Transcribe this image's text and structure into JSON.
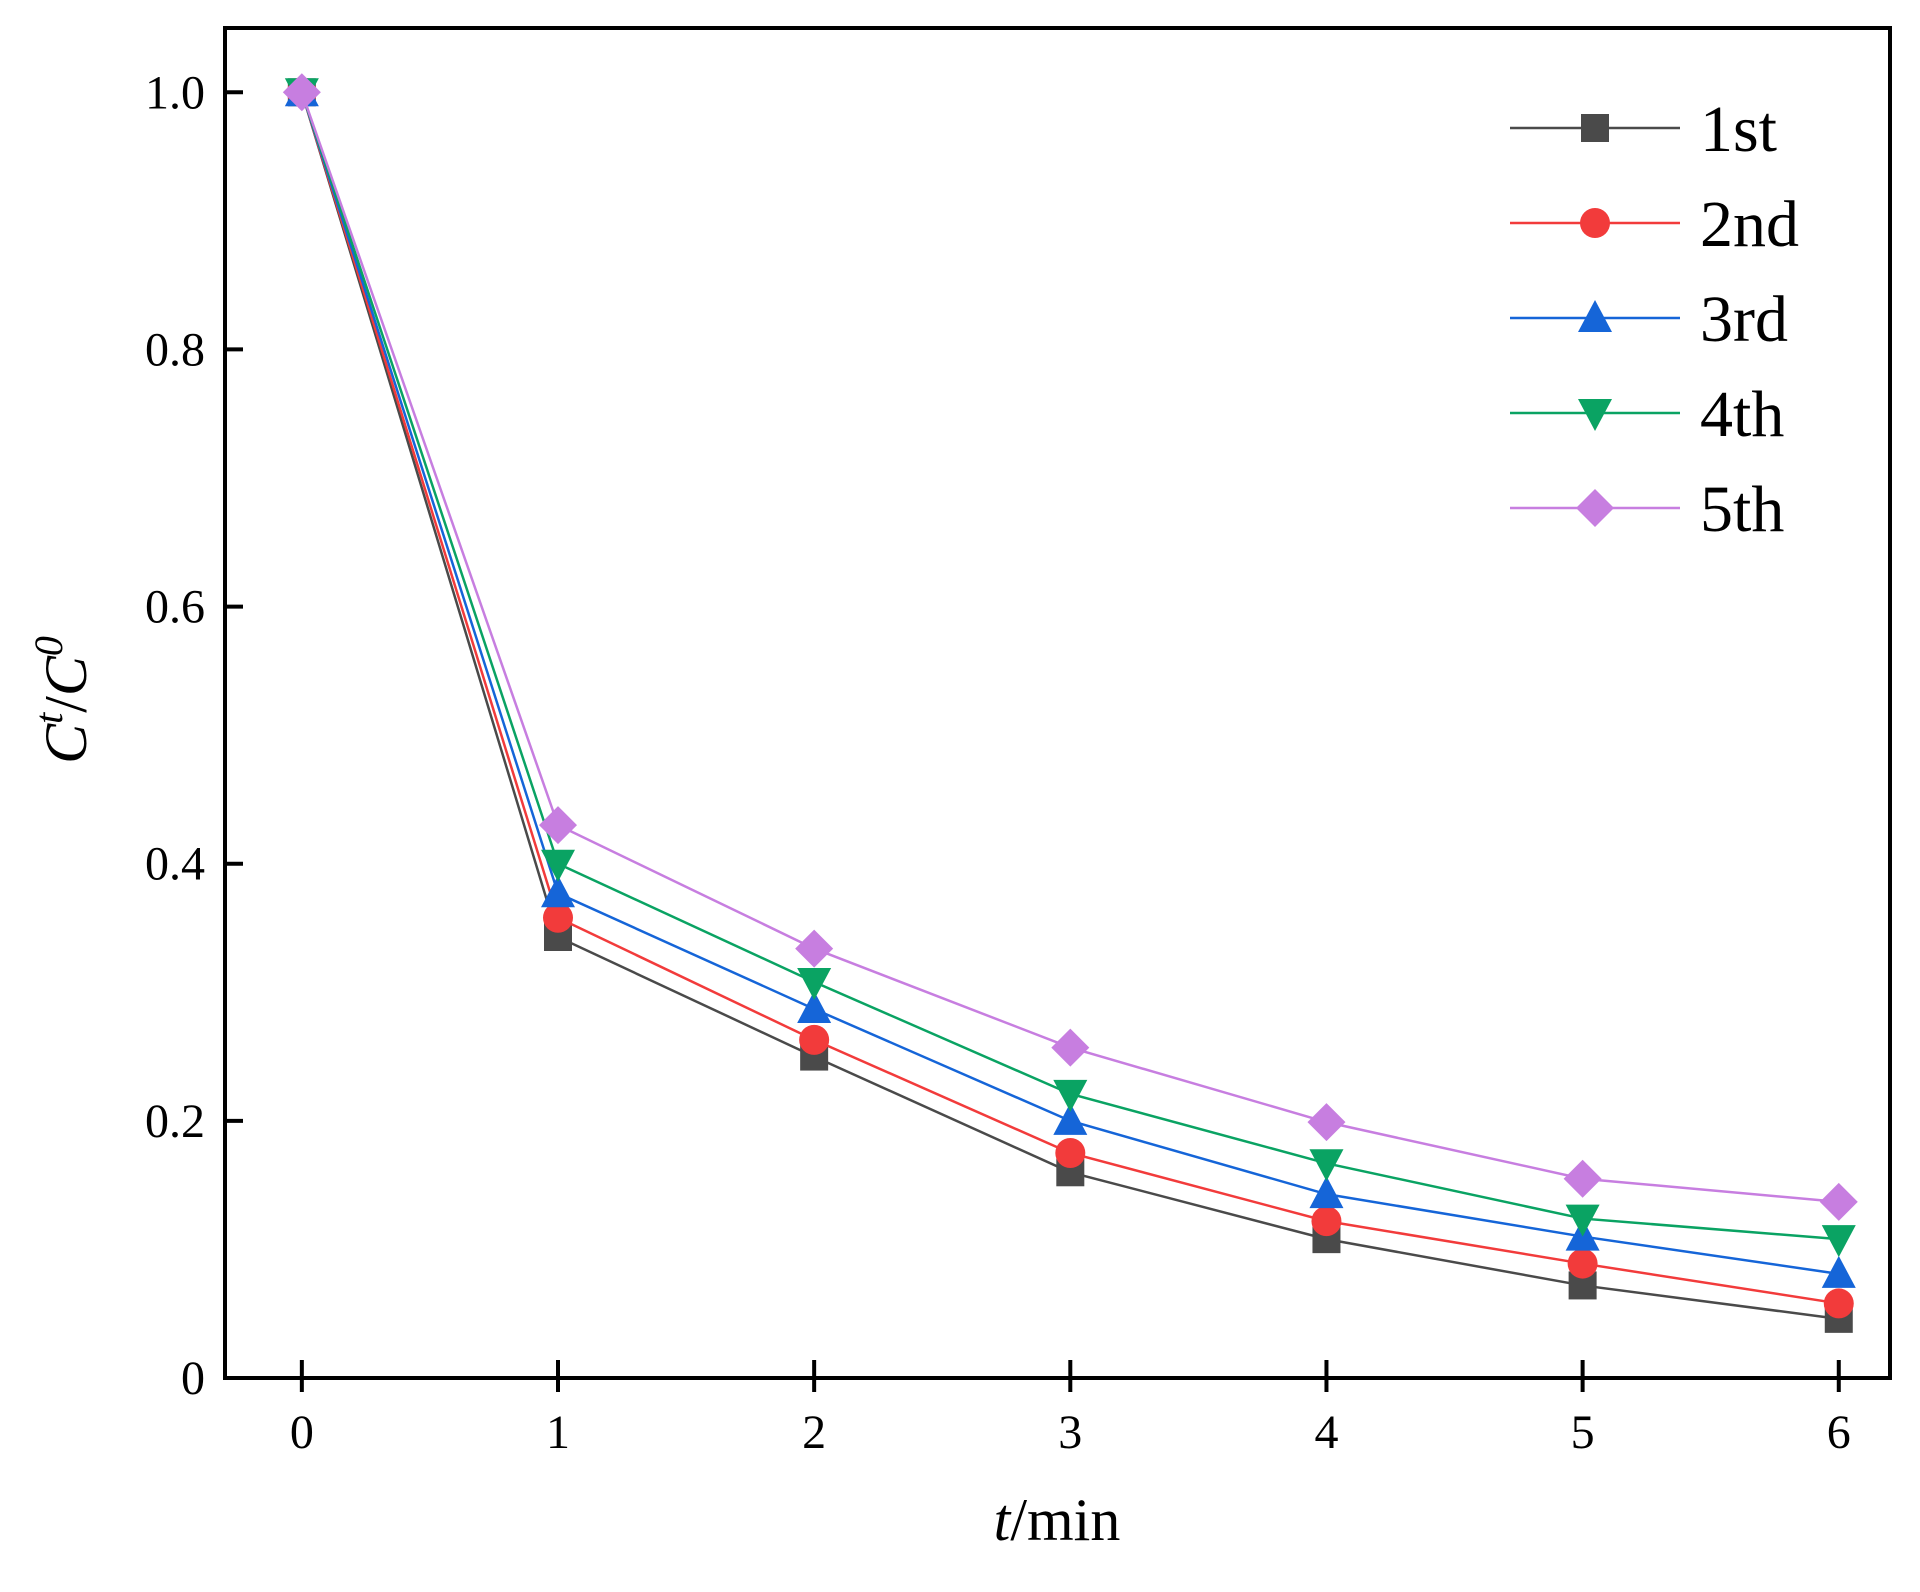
{
  "chart_data": {
    "type": "line",
    "x": [
      0,
      1,
      2,
      3,
      4,
      5,
      6
    ],
    "xticks": [
      "0",
      "1",
      "2",
      "3",
      "4",
      "5",
      "6"
    ],
    "yticks": [
      {
        "value": 0,
        "label": "0"
      },
      {
        "value": 0.2,
        "label": "0.2"
      },
      {
        "value": 0.4,
        "label": "0.4"
      },
      {
        "value": 0.6,
        "label": "0.6"
      },
      {
        "value": 0.8,
        "label": "0.8"
      },
      {
        "value": 1.0,
        "label": "1.0"
      }
    ],
    "xlim": [
      -0.3,
      6.2
    ],
    "ylim": [
      0,
      1.05
    ],
    "xlabel": {
      "italic": "t",
      "rest": "/min"
    },
    "ylabel": {
      "c1": "C",
      "sup1": "t",
      "slash": "/",
      "c2": "C",
      "sup2": "0"
    },
    "legend_position": "top-right",
    "grid": false,
    "series": [
      {
        "name": "1st",
        "color": "#4a4a4a",
        "marker": "square",
        "values": [
          1.0,
          0.343,
          0.25,
          0.16,
          0.108,
          0.072,
          0.046
        ]
      },
      {
        "name": "2nd",
        "color": "#f23b3b",
        "marker": "circle",
        "values": [
          1.0,
          0.358,
          0.263,
          0.175,
          0.122,
          0.089,
          0.058
        ]
      },
      {
        "name": "3rd",
        "color": "#1565d8",
        "marker": "triangle-up",
        "values": [
          1.0,
          0.377,
          0.287,
          0.2,
          0.143,
          0.11,
          0.081
        ]
      },
      {
        "name": "4th",
        "color": "#0aa363",
        "marker": "triangle-down",
        "values": [
          1.0,
          0.4,
          0.308,
          0.221,
          0.167,
          0.124,
          0.108
        ]
      },
      {
        "name": "5th",
        "color": "#c77ee0",
        "marker": "diamond",
        "values": [
          1.0,
          0.43,
          0.334,
          0.257,
          0.199,
          0.155,
          0.137
        ]
      }
    ]
  }
}
